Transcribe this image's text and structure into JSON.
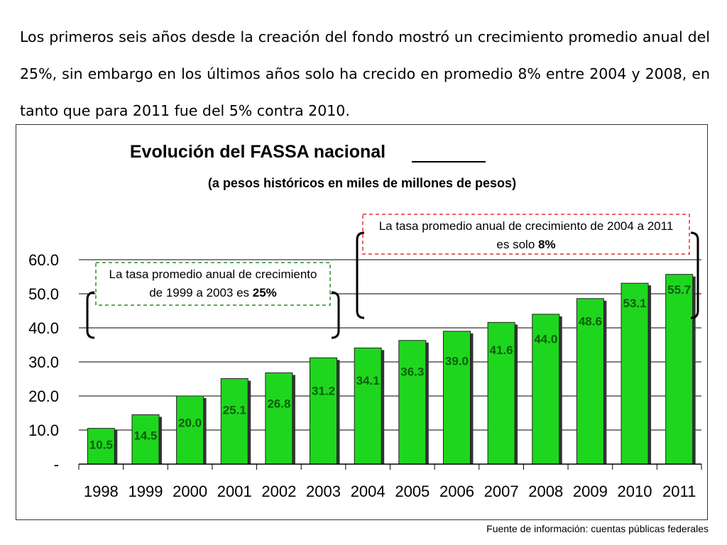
{
  "intro": {
    "paragraph": "Los primeros seis años desde la creación del fondo mostró un crecimiento promedio anual del 25%, sin embargo en los últimos años solo ha crecido en promedio 8% entre 2004 y 2008, en tanto que para 2011 fue del 5% contra 2010."
  },
  "source_note": "Fuente de información: cuentas públicas federales",
  "colors": {
    "bar_fill": "#1fd61f",
    "bar_shadow": "#333333",
    "value_label": "#0a5e0a",
    "callout_left_border": "#2e8b2e",
    "callout_right_border": "#e03030"
  },
  "chart_data": {
    "type": "bar",
    "title": "Evolución del FASSA nacional",
    "title_underlined_word": "nacional",
    "subtitle": "(a pesos históricos en miles de millones de pesos)",
    "categories": [
      "1998",
      "1999",
      "2000",
      "2001",
      "2002",
      "2003",
      "2004",
      "2005",
      "2006",
      "2007",
      "2008",
      "2009",
      "2010",
      "2011"
    ],
    "values": [
      10.5,
      14.5,
      20.0,
      25.1,
      26.8,
      31.2,
      34.1,
      36.3,
      39.0,
      41.6,
      44.0,
      48.6,
      53.1,
      55.7
    ],
    "data_labels": [
      "10.5",
      "14.5",
      "20.0",
      "25.1",
      "26.8",
      "31.2",
      "34.1",
      "36.3",
      "39.0",
      "41.6",
      "44.0",
      "48.6",
      "53.1",
      "55.7"
    ],
    "ylim": [
      0,
      60
    ],
    "y_ticks": [
      0,
      10,
      20,
      30,
      40,
      50,
      60
    ],
    "y_tick_labels": [
      "-",
      "10.0",
      "20.0",
      "30.0",
      "40.0",
      "50.0",
      "60.0"
    ],
    "grid": true,
    "annotations": [
      {
        "line1": "La tasa promedio anual de crecimiento",
        "line2_prefix": "de 1999 a 2003 es ",
        "line2_bold": "25%",
        "bracket_categories": [
          "1998",
          "2003"
        ]
      },
      {
        "line1": "La tasa promedio anual de crecimiento de 2004 a 2011",
        "line2_prefix": "es solo ",
        "line2_bold": "8%",
        "bracket_categories": [
          "2004",
          "2011"
        ]
      }
    ]
  }
}
